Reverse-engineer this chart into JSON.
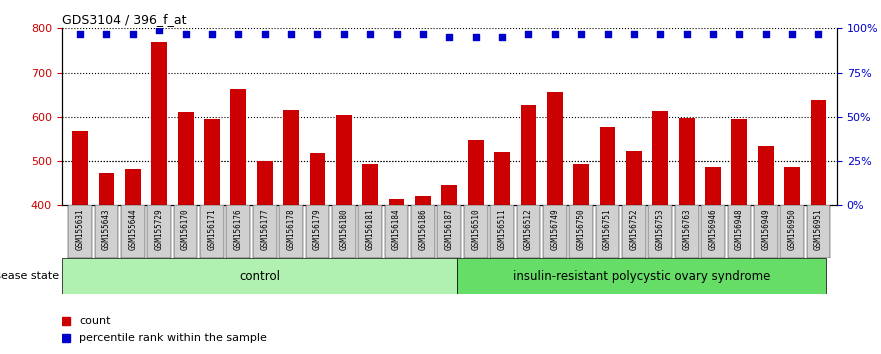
{
  "title": "GDS3104 / 396_f_at",
  "samples": [
    "GSM155631",
    "GSM155643",
    "GSM155644",
    "GSM155729",
    "GSM156170",
    "GSM156171",
    "GSM156176",
    "GSM156177",
    "GSM156178",
    "GSM156179",
    "GSM156180",
    "GSM156181",
    "GSM156184",
    "GSM156186",
    "GSM156187",
    "GSM156510",
    "GSM156511",
    "GSM156512",
    "GSM156749",
    "GSM156750",
    "GSM156751",
    "GSM156752",
    "GSM156753",
    "GSM156763",
    "GSM156946",
    "GSM156948",
    "GSM156949",
    "GSM156950",
    "GSM156951"
  ],
  "bar_values": [
    568,
    474,
    482,
    770,
    612,
    595,
    662,
    500,
    615,
    518,
    605,
    493,
    415,
    422,
    447,
    548,
    520,
    627,
    655,
    493,
    578,
    522,
    614,
    597,
    487,
    596,
    535,
    487,
    638
  ],
  "percentile_values": [
    97,
    97,
    97,
    99,
    97,
    97,
    97,
    97,
    97,
    97,
    97,
    97,
    97,
    97,
    95,
    95,
    95,
    97,
    97,
    97,
    97,
    97,
    97,
    97,
    97,
    97,
    97,
    97,
    97
  ],
  "control_count": 15,
  "bar_color": "#cc0000",
  "dot_color": "#0000cc",
  "ylim_left": [
    400,
    800
  ],
  "ylim_right": [
    0,
    100
  ],
  "yticks_left": [
    400,
    500,
    600,
    700,
    800
  ],
  "yticks_right": [
    0,
    25,
    50,
    75,
    100
  ],
  "grid_values": [
    500,
    600,
    700
  ],
  "control_label": "control",
  "disease_label": "insulin-resistant polycystic ovary syndrome",
  "disease_state_label": "disease state",
  "legend_count": "count",
  "legend_percentile": "percentile rank within the sample",
  "bg_color": "#ffffff",
  "xticklabel_bg": "#d0d0d0",
  "control_bg": "#b0f0b0",
  "disease_bg": "#66dd66"
}
